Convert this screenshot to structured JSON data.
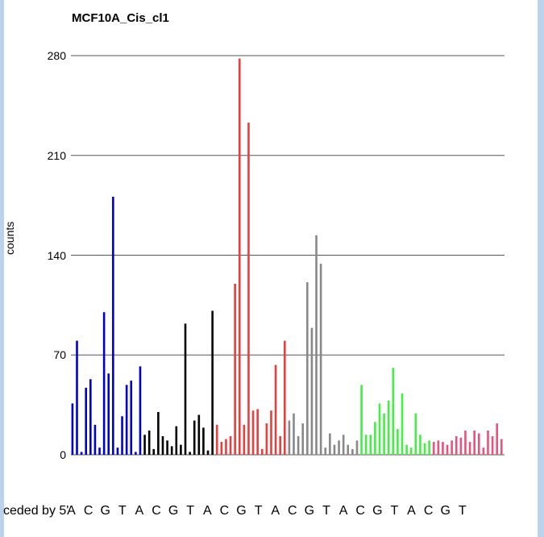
{
  "chart_data": {
    "type": "bar",
    "title": "MCF10A_Cis_cl1",
    "ylabel": "counts",
    "ylim": [
      0,
      280
    ],
    "yticks": [
      0,
      70,
      140,
      210,
      280
    ],
    "grid": true,
    "xlabel_prefix": "ceded by 5'",
    "x_categories": [
      "A",
      "C",
      "G",
      "T",
      "A",
      "C",
      "G",
      "T",
      "A",
      "C",
      "G",
      "T",
      "A",
      "C",
      "G",
      "T",
      "A",
      "C",
      "G",
      "T",
      "A",
      "C",
      "G",
      "T"
    ],
    "group_colors": [
      "#0000cc",
      "#000000",
      "#e83e3e",
      "#888888",
      "#44ee44",
      "#e8537a"
    ],
    "bars": [
      {
        "g": 0,
        "v": 36
      },
      {
        "g": 0,
        "v": 80
      },
      {
        "g": 0,
        "v": 2
      },
      {
        "g": 0,
        "v": 47
      },
      {
        "g": 0,
        "v": 53
      },
      {
        "g": 0,
        "v": 21
      },
      {
        "g": 0,
        "v": 5
      },
      {
        "g": 0,
        "v": 100
      },
      {
        "g": 0,
        "v": 57
      },
      {
        "g": 0,
        "v": 181
      },
      {
        "g": 0,
        "v": 5
      },
      {
        "g": 0,
        "v": 27
      },
      {
        "g": 0,
        "v": 49
      },
      {
        "g": 0,
        "v": 52
      },
      {
        "g": 0,
        "v": 2
      },
      {
        "g": 0,
        "v": 62
      },
      {
        "g": 1,
        "v": 14
      },
      {
        "g": 1,
        "v": 17
      },
      {
        "g": 1,
        "v": 4
      },
      {
        "g": 1,
        "v": 30
      },
      {
        "g": 1,
        "v": 13
      },
      {
        "g": 1,
        "v": 10
      },
      {
        "g": 1,
        "v": 6
      },
      {
        "g": 1,
        "v": 20
      },
      {
        "g": 1,
        "v": 7
      },
      {
        "g": 1,
        "v": 92
      },
      {
        "g": 1,
        "v": 2
      },
      {
        "g": 1,
        "v": 24
      },
      {
        "g": 1,
        "v": 28
      },
      {
        "g": 1,
        "v": 19
      },
      {
        "g": 1,
        "v": 3
      },
      {
        "g": 1,
        "v": 101
      },
      {
        "g": 2,
        "v": 21
      },
      {
        "g": 2,
        "v": 9
      },
      {
        "g": 2,
        "v": 11
      },
      {
        "g": 2,
        "v": 13
      },
      {
        "g": 2,
        "v": 120
      },
      {
        "g": 2,
        "v": 278
      },
      {
        "g": 2,
        "v": 21
      },
      {
        "g": 2,
        "v": 233
      },
      {
        "g": 2,
        "v": 31
      },
      {
        "g": 2,
        "v": 32
      },
      {
        "g": 2,
        "v": 4
      },
      {
        "g": 2,
        "v": 22
      },
      {
        "g": 2,
        "v": 31
      },
      {
        "g": 2,
        "v": 63
      },
      {
        "g": 2,
        "v": 13
      },
      {
        "g": 2,
        "v": 80
      },
      {
        "g": 3,
        "v": 24
      },
      {
        "g": 3,
        "v": 29
      },
      {
        "g": 3,
        "v": 13
      },
      {
        "g": 3,
        "v": 22
      },
      {
        "g": 3,
        "v": 121
      },
      {
        "g": 3,
        "v": 89
      },
      {
        "g": 3,
        "v": 154
      },
      {
        "g": 3,
        "v": 134
      },
      {
        "g": 3,
        "v": 5
      },
      {
        "g": 3,
        "v": 15
      },
      {
        "g": 3,
        "v": 7
      },
      {
        "g": 3,
        "v": 10
      },
      {
        "g": 3,
        "v": 14
      },
      {
        "g": 3,
        "v": 7
      },
      {
        "g": 3,
        "v": 4
      },
      {
        "g": 3,
        "v": 10
      },
      {
        "g": 4,
        "v": 49
      },
      {
        "g": 4,
        "v": 14
      },
      {
        "g": 4,
        "v": 14
      },
      {
        "g": 4,
        "v": 23
      },
      {
        "g": 4,
        "v": 36
      },
      {
        "g": 4,
        "v": 29
      },
      {
        "g": 4,
        "v": 38
      },
      {
        "g": 4,
        "v": 61
      },
      {
        "g": 4,
        "v": 18
      },
      {
        "g": 4,
        "v": 43
      },
      {
        "g": 4,
        "v": 7
      },
      {
        "g": 4,
        "v": 5
      },
      {
        "g": 4,
        "v": 29
      },
      {
        "g": 4,
        "v": 14
      },
      {
        "g": 4,
        "v": 8
      },
      {
        "g": 4,
        "v": 10
      },
      {
        "g": 5,
        "v": 9
      },
      {
        "g": 5,
        "v": 10
      },
      {
        "g": 5,
        "v": 9
      },
      {
        "g": 5,
        "v": 7
      },
      {
        "g": 5,
        "v": 10
      },
      {
        "g": 5,
        "v": 13
      },
      {
        "g": 5,
        "v": 12
      },
      {
        "g": 5,
        "v": 17
      },
      {
        "g": 5,
        "v": 9
      },
      {
        "g": 5,
        "v": 17
      },
      {
        "g": 5,
        "v": 15
      },
      {
        "g": 5,
        "v": 5
      },
      {
        "g": 5,
        "v": 17
      },
      {
        "g": 5,
        "v": 13
      },
      {
        "g": 5,
        "v": 22
      },
      {
        "g": 5,
        "v": 11
      }
    ]
  }
}
